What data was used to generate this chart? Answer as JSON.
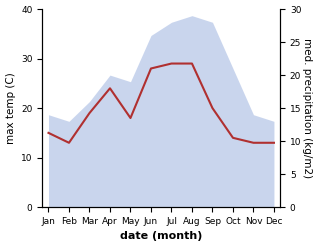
{
  "months": [
    "Jan",
    "Feb",
    "Mar",
    "Apr",
    "May",
    "Jun",
    "Jul",
    "Aug",
    "Sep",
    "Oct",
    "Nov",
    "Dec"
  ],
  "temp": [
    15,
    13,
    19,
    24,
    18,
    28,
    29,
    29,
    20,
    14,
    13,
    13
  ],
  "precip": [
    14,
    13,
    16,
    20,
    19,
    26,
    28,
    29,
    28,
    21,
    14,
    13
  ],
  "left_ylim": [
    0,
    40
  ],
  "right_ylim": [
    0,
    30
  ],
  "left_yticks": [
    0,
    10,
    20,
    30,
    40
  ],
  "right_yticks": [
    0,
    5,
    10,
    15,
    20,
    25,
    30
  ],
  "ylabel_left": "max temp (C)",
  "ylabel_right": "med. precipitation (kg/m2)",
  "xlabel": "date (month)",
  "line_color": "#b03030",
  "line_width": 1.5,
  "fill_color": "#b8c8e8",
  "fill_alpha": 0.75,
  "tick_fontsize": 6.5,
  "label_fontsize": 7.5,
  "xlabel_fontsize": 8
}
